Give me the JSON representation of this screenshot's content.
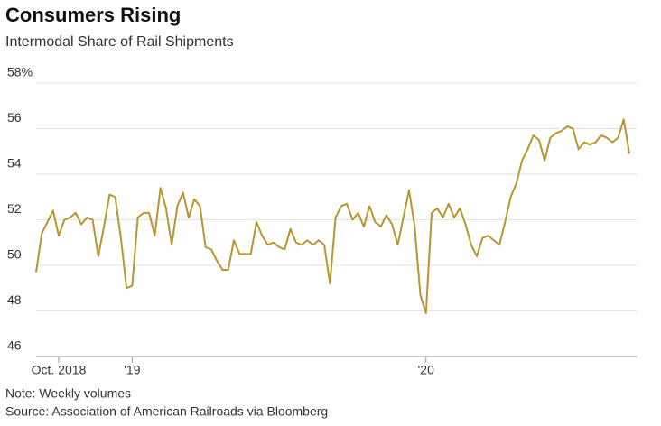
{
  "chart_data": {
    "type": "line",
    "title": "Consumers Rising",
    "subtitle": "Intermodal Share of Rail Shipments",
    "note": "Note: Weekly volumes",
    "source": "Source: Association of American Railroads via Bloomberg",
    "categories": [
      null,
      null,
      null,
      null,
      "Oct. 2018",
      null,
      null,
      null,
      null,
      null,
      null,
      null,
      null,
      null,
      null,
      null,
      null,
      "'19",
      null,
      null,
      null,
      null,
      null,
      null,
      null,
      null,
      null,
      null,
      null,
      null,
      null,
      null,
      null,
      null,
      null,
      null,
      null,
      null,
      null,
      null,
      null,
      null,
      null,
      null,
      null,
      null,
      null,
      null,
      null,
      null,
      null,
      null,
      null,
      null,
      null,
      null,
      null,
      null,
      null,
      null,
      null,
      null,
      null,
      null,
      null,
      null,
      null,
      null,
      null,
      "'20",
      null,
      null,
      null,
      null,
      null,
      null,
      null,
      null,
      null,
      null,
      null,
      null,
      null,
      null,
      null,
      null,
      null,
      null,
      null,
      null,
      null,
      null,
      null,
      null,
      null,
      null,
      null,
      null,
      null,
      null,
      null,
      null,
      null,
      null,
      null,
      null
    ],
    "series": [
      {
        "name": "Intermodal share",
        "color": "#b8962e",
        "values": [
          49.7,
          51.4,
          51.9,
          52.4,
          51.3,
          52.0,
          52.1,
          52.3,
          51.8,
          52.1,
          52.0,
          50.4,
          51.7,
          53.1,
          53.0,
          51.2,
          49.0,
          49.1,
          52.1,
          52.3,
          52.3,
          51.3,
          53.4,
          52.5,
          50.9,
          52.6,
          53.2,
          52.1,
          52.9,
          52.6,
          50.8,
          50.7,
          50.2,
          49.8,
          49.8,
          51.1,
          50.5,
          50.5,
          50.5,
          51.9,
          51.3,
          50.9,
          51.0,
          50.8,
          50.7,
          51.6,
          51.0,
          50.9,
          51.1,
          50.9,
          51.1,
          50.9,
          49.2,
          52.1,
          52.6,
          52.7,
          52.0,
          52.3,
          51.7,
          52.6,
          51.9,
          51.7,
          52.2,
          51.8,
          50.9,
          52.1,
          53.3,
          51.7,
          48.7,
          47.9,
          52.3,
          52.5,
          52.1,
          52.7,
          52.1,
          52.5,
          51.8,
          50.9,
          50.4,
          51.2,
          51.3,
          51.1,
          50.9,
          51.9,
          53.0,
          53.6,
          54.6,
          55.1,
          55.7,
          55.5,
          54.6,
          55.6,
          55.8,
          55.9,
          56.1,
          56.0,
          55.1,
          55.4,
          55.3,
          55.4,
          55.7,
          55.6,
          55.4,
          55.6,
          56.4,
          54.9
        ]
      }
    ],
    "ylim": [
      46,
      58
    ],
    "yticks": [
      46,
      48,
      50,
      52,
      54,
      56,
      {
        "value": 58,
        "label": "58%"
      }
    ],
    "grid": true
  }
}
